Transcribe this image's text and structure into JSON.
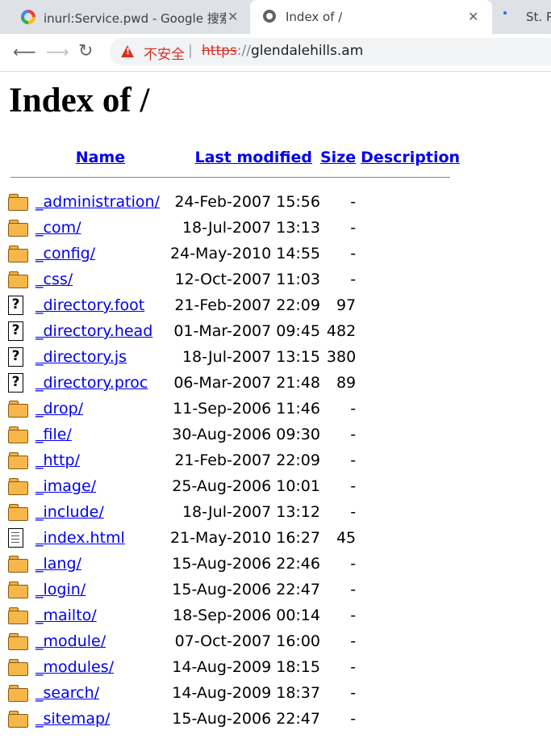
{
  "browser": {
    "tabs": [
      {
        "title": "inurl:Service.pwd - Google 搜索",
        "icon": "google-icon",
        "active": false
      },
      {
        "title": "Index of /",
        "icon": "globe-icon",
        "active": true
      },
      {
        "title": "St. P",
        "icon": "loading-dot-icon",
        "active": false
      }
    ],
    "security_label": "不安全",
    "separator": "|",
    "url_scheme": "https",
    "url_slashes": "://",
    "url_host": "glendalehills.am"
  },
  "page": {
    "title": "Index of /",
    "columns": {
      "name": "Name",
      "last_modified": "Last modified",
      "size": "Size",
      "description": "Description"
    },
    "entries": [
      {
        "icon": "folder-icon",
        "name": "_administration/",
        "modified": "24-Feb-2007 15:56",
        "size": "-"
      },
      {
        "icon": "folder-icon",
        "name": "_com/",
        "modified": "18-Jul-2007 13:13",
        "size": "-"
      },
      {
        "icon": "folder-icon",
        "name": "_config/",
        "modified": "24-May-2010 14:55",
        "size": "-"
      },
      {
        "icon": "folder-icon",
        "name": "_css/",
        "modified": "12-Oct-2007 11:03",
        "size": "-"
      },
      {
        "icon": "unknown-file-icon",
        "name": "_directory.foot",
        "modified": "21-Feb-2007 22:09",
        "size": "97"
      },
      {
        "icon": "unknown-file-icon",
        "name": "_directory.head",
        "modified": "01-Mar-2007 09:45",
        "size": "482"
      },
      {
        "icon": "unknown-file-icon",
        "name": "_directory.js",
        "modified": "18-Jul-2007 13:15",
        "size": "380"
      },
      {
        "icon": "unknown-file-icon",
        "name": "_directory.proc",
        "modified": "06-Mar-2007 21:48",
        "size": "89"
      },
      {
        "icon": "folder-icon",
        "name": "_drop/",
        "modified": "11-Sep-2006 11:46",
        "size": "-"
      },
      {
        "icon": "folder-icon",
        "name": "_file/",
        "modified": "30-Aug-2006 09:30",
        "size": "-"
      },
      {
        "icon": "folder-icon",
        "name": "_http/",
        "modified": "21-Feb-2007 22:09",
        "size": "-"
      },
      {
        "icon": "folder-icon",
        "name": "_image/",
        "modified": "25-Aug-2006 10:01",
        "size": "-"
      },
      {
        "icon": "folder-icon",
        "name": "_include/",
        "modified": "18-Jul-2007 13:12",
        "size": "-"
      },
      {
        "icon": "text-file-icon",
        "name": "_index.html",
        "modified": "21-May-2010 16:27",
        "size": "45"
      },
      {
        "icon": "folder-icon",
        "name": "_lang/",
        "modified": "15-Aug-2006 22:46",
        "size": "-"
      },
      {
        "icon": "folder-icon",
        "name": "_login/",
        "modified": "15-Aug-2006 22:47",
        "size": "-"
      },
      {
        "icon": "folder-icon",
        "name": "_mailto/",
        "modified": "18-Sep-2006 00:14",
        "size": "-"
      },
      {
        "icon": "folder-icon",
        "name": "_module/",
        "modified": "07-Oct-2007 16:00",
        "size": "-"
      },
      {
        "icon": "folder-icon",
        "name": "_modules/",
        "modified": "14-Aug-2009 18:15",
        "size": "-"
      },
      {
        "icon": "folder-icon",
        "name": "_search/",
        "modified": "14-Aug-2009 18:37",
        "size": "-"
      },
      {
        "icon": "folder-icon",
        "name": "_sitemap/",
        "modified": "15-Aug-2006 22:47",
        "size": "-"
      }
    ]
  }
}
